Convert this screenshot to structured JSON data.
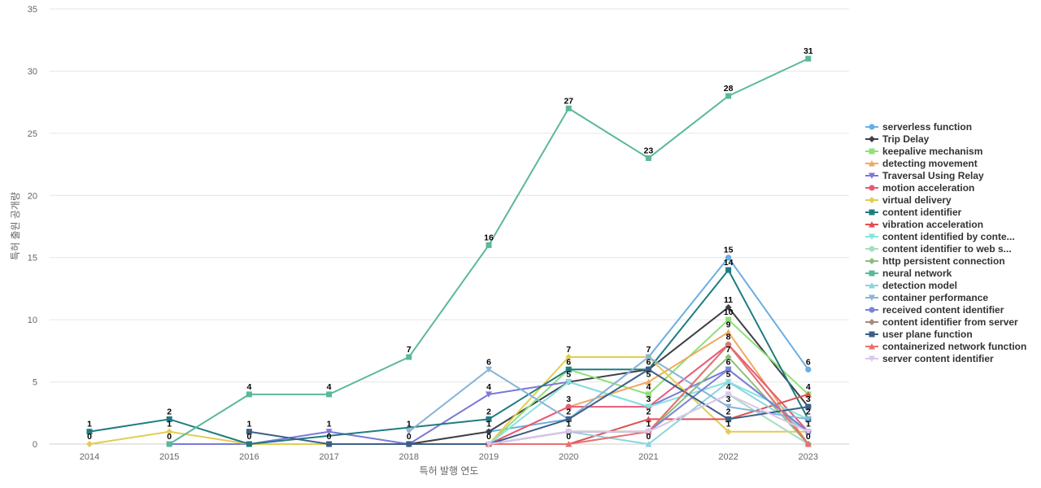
{
  "chart_data": {
    "type": "line",
    "xlabel": "특허 발행 연도",
    "ylabel": "특허 출원 공개량",
    "ylim": [
      0,
      35
    ],
    "yticks": [
      0,
      5,
      10,
      15,
      20,
      25,
      30,
      35
    ],
    "x": [
      "2014",
      "2015",
      "2016",
      "2017",
      "2018",
      "2019",
      "2020",
      "2021",
      "2022",
      "2023"
    ],
    "grid": true,
    "legend_position": "right",
    "series": [
      {
        "name": "serverless function",
        "color": "#6aaee3",
        "marker": "circle",
        "values": [
          null,
          null,
          null,
          null,
          null,
          1,
          2,
          7,
          15,
          6
        ]
      },
      {
        "name": "Trip Delay",
        "color": "#3f3f46",
        "marker": "diamond",
        "values": [
          null,
          null,
          null,
          null,
          0,
          1,
          5,
          6,
          11,
          3
        ]
      },
      {
        "name": "keepalive mechanism",
        "color": "#8fe07a",
        "marker": "square",
        "values": [
          null,
          null,
          null,
          null,
          null,
          0,
          6,
          4,
          10,
          4
        ]
      },
      {
        "name": "detecting movement",
        "color": "#f0a860",
        "marker": "triangle-up",
        "values": [
          null,
          null,
          null,
          null,
          null,
          0,
          3,
          5,
          9,
          0
        ]
      },
      {
        "name": "Traversal Using Relay",
        "color": "#7b78d8",
        "marker": "triangle-down",
        "values": [
          null,
          0,
          0,
          1,
          0,
          4,
          5,
          3,
          6,
          1
        ]
      },
      {
        "name": "motion acceleration",
        "color": "#e65a78",
        "marker": "circle",
        "values": [
          null,
          null,
          null,
          null,
          null,
          0,
          3,
          3,
          8,
          1
        ]
      },
      {
        "name": "virtual delivery",
        "color": "#e3cc52",
        "marker": "diamond",
        "values": [
          0,
          1,
          0,
          null,
          null,
          0,
          7,
          7,
          1,
          1
        ]
      },
      {
        "name": "content identifier",
        "color": "#1f7c80",
        "marker": "square",
        "values": [
          1,
          2,
          0,
          null,
          null,
          2,
          6,
          6,
          14,
          2
        ]
      },
      {
        "name": "vibration acceleration",
        "color": "#e05050",
        "marker": "triangle-up",
        "values": [
          null,
          null,
          null,
          null,
          null,
          0,
          0,
          2,
          2,
          4
        ]
      },
      {
        "name": "content identified by conte...",
        "color": "#86e3de",
        "marker": "triangle-down",
        "values": [
          null,
          null,
          null,
          null,
          null,
          0,
          5,
          3,
          5,
          2
        ]
      },
      {
        "name": "content identifier to web s...",
        "color": "#a8dcc0",
        "marker": "circle",
        "values": [
          null,
          null,
          null,
          null,
          null,
          0,
          1,
          1,
          4,
          0
        ]
      },
      {
        "name": "http persistent connection",
        "color": "#8cbf7a",
        "marker": "diamond",
        "values": [
          null,
          null,
          null,
          null,
          null,
          0,
          1,
          1,
          7,
          0
        ]
      },
      {
        "name": "neural network",
        "color": "#5bb89a",
        "marker": "square",
        "values": [
          null,
          0,
          4,
          4,
          7,
          16,
          27,
          23,
          28,
          31
        ]
      },
      {
        "name": "detection model",
        "color": "#8dd3e0",
        "marker": "triangle-up",
        "values": [
          null,
          null,
          null,
          null,
          null,
          0,
          1,
          0,
          5,
          1
        ]
      },
      {
        "name": "container performance",
        "color": "#88b4d8",
        "marker": "triangle-down",
        "values": [
          null,
          null,
          null,
          null,
          1,
          6,
          2,
          7,
          3,
          2
        ]
      },
      {
        "name": "received content identifier",
        "color": "#7a82d8",
        "marker": "circle",
        "values": [
          null,
          null,
          null,
          null,
          null,
          0,
          1,
          1,
          6,
          1
        ]
      },
      {
        "name": "content identifier from server",
        "color": "#a88a7a",
        "marker": "diamond",
        "values": [
          null,
          null,
          null,
          null,
          null,
          0,
          1,
          1,
          8,
          0
        ]
      },
      {
        "name": "user plane function",
        "color": "#3d5f86",
        "marker": "square",
        "values": [
          null,
          null,
          1,
          0,
          0,
          0,
          2,
          6,
          2,
          3
        ]
      },
      {
        "name": "containerized network function",
        "color": "#e87070",
        "marker": "triangle-up",
        "values": [
          null,
          null,
          null,
          null,
          null,
          0,
          0,
          1,
          8,
          0
        ]
      },
      {
        "name": "server content identifier",
        "color": "#dcc6ec",
        "marker": "triangle-down",
        "values": [
          null,
          null,
          null,
          null,
          null,
          0,
          1,
          1,
          4,
          1
        ]
      }
    ],
    "data_labels": [
      {
        "x": "2014",
        "text": "1",
        "value": 1,
        "dy": -10
      },
      {
        "x": "2014",
        "text": "0",
        "value": 0,
        "dy": -10
      },
      {
        "x": "2015",
        "text": "2",
        "value": 2,
        "dy": -10
      },
      {
        "x": "2015",
        "text": "1",
        "value": 1,
        "dy": -10
      },
      {
        "x": "2015",
        "text": "0",
        "value": 0,
        "dy": -10
      },
      {
        "x": "2016",
        "text": "4",
        "value": 4,
        "dy": -10
      },
      {
        "x": "2016",
        "text": "1",
        "value": 1,
        "dy": -10
      },
      {
        "x": "2016",
        "text": "0",
        "value": 0,
        "dy": -10
      },
      {
        "x": "2017",
        "text": "4",
        "value": 4,
        "dy": -10
      },
      {
        "x": "2017",
        "text": "1",
        "value": 1,
        "dy": -10
      },
      {
        "x": "2017",
        "text": "0",
        "value": 0,
        "dy": -10
      },
      {
        "x": "2018",
        "text": "7",
        "value": 7,
        "dy": -10
      },
      {
        "x": "2018",
        "text": "1",
        "value": 1,
        "dy": -10
      },
      {
        "x": "2018",
        "text": "0",
        "value": 0,
        "dy": -10
      },
      {
        "x": "2019",
        "text": "16",
        "value": 16,
        "dy": -10
      },
      {
        "x": "2019",
        "text": "6",
        "value": 6,
        "dy": -10
      },
      {
        "x": "2019",
        "text": "4",
        "value": 4,
        "dy": -10
      },
      {
        "x": "2019",
        "text": "2",
        "value": 2,
        "dy": -10
      },
      {
        "x": "2019",
        "text": "1",
        "value": 1,
        "dy": -10
      },
      {
        "x": "2019",
        "text": "0",
        "value": 0,
        "dy": -10
      },
      {
        "x": "2020",
        "text": "27",
        "value": 27,
        "dy": -10
      },
      {
        "x": "2020",
        "text": "7",
        "value": 7,
        "dy": -10
      },
      {
        "x": "2020",
        "text": "6",
        "value": 6,
        "dy": -10
      },
      {
        "x": "2020",
        "text": "5",
        "value": 5,
        "dy": -10
      },
      {
        "x": "2020",
        "text": "3",
        "value": 3,
        "dy": -10
      },
      {
        "x": "2020",
        "text": "2",
        "value": 2,
        "dy": -10
      },
      {
        "x": "2020",
        "text": "1",
        "value": 1,
        "dy": -10
      },
      {
        "x": "2020",
        "text": "0",
        "value": 0,
        "dy": -10
      },
      {
        "x": "2021",
        "text": "23",
        "value": 23,
        "dy": -10
      },
      {
        "x": "2021",
        "text": "7",
        "value": 7,
        "dy": -10
      },
      {
        "x": "2021",
        "text": "6",
        "value": 6,
        "dy": -10
      },
      {
        "x": "2021",
        "text": "5",
        "value": 5,
        "dy": -10
      },
      {
        "x": "2021",
        "text": "4",
        "value": 4,
        "dy": -10
      },
      {
        "x": "2021",
        "text": "3",
        "value": 3,
        "dy": -10
      },
      {
        "x": "2021",
        "text": "2",
        "value": 2,
        "dy": -10
      },
      {
        "x": "2021",
        "text": "1",
        "value": 1,
        "dy": -10
      },
      {
        "x": "2021",
        "text": "0",
        "value": 0,
        "dy": -10
      },
      {
        "x": "2022",
        "text": "28",
        "value": 28,
        "dy": -10
      },
      {
        "x": "2022",
        "text": "15",
        "value": 15,
        "dy": -10
      },
      {
        "x": "2022",
        "text": "14",
        "value": 14,
        "dy": -10
      },
      {
        "x": "2022",
        "text": "11",
        "value": 11,
        "dy": -10
      },
      {
        "x": "2022",
        "text": "10",
        "value": 10,
        "dy": -10
      },
      {
        "x": "2022",
        "text": "9",
        "value": 9,
        "dy": -10
      },
      {
        "x": "2022",
        "text": "8",
        "value": 8,
        "dy": -10
      },
      {
        "x": "2022",
        "text": "7",
        "value": 7,
        "dy": -10
      },
      {
        "x": "2022",
        "text": "6",
        "value": 6,
        "dy": -10
      },
      {
        "x": "2022",
        "text": "5",
        "value": 5,
        "dy": -10
      },
      {
        "x": "2022",
        "text": "4",
        "value": 4,
        "dy": -10
      },
      {
        "x": "2022",
        "text": "3",
        "value": 3,
        "dy": -10
      },
      {
        "x": "2022",
        "text": "2",
        "value": 2,
        "dy": -10
      },
      {
        "x": "2022",
        "text": "1",
        "value": 1,
        "dy": -10
      },
      {
        "x": "2023",
        "text": "31",
        "value": 31,
        "dy": -10
      },
      {
        "x": "2023",
        "text": "6",
        "value": 6,
        "dy": -10
      },
      {
        "x": "2023",
        "text": "4",
        "value": 4,
        "dy": -10
      },
      {
        "x": "2023",
        "text": "3",
        "value": 3,
        "dy": -10
      },
      {
        "x": "2023",
        "text": "2",
        "value": 2,
        "dy": -10
      },
      {
        "x": "2023",
        "text": "1",
        "value": 1,
        "dy": -10
      },
      {
        "x": "2023",
        "text": "0",
        "value": 0,
        "dy": -10
      }
    ]
  }
}
